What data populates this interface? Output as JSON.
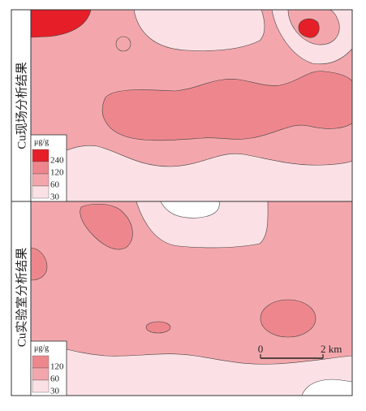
{
  "panels": [
    {
      "label": "Cu现场分析结果",
      "legend": {
        "unit": "μg/g",
        "items": [
          {
            "label": "240",
            "color": "#e61e28"
          },
          {
            "label": "120",
            "color": "#ee878d"
          },
          {
            "label": "60",
            "color": "#f3a7ac"
          },
          {
            "label": "30",
            "color": "#fbe1e5"
          }
        ]
      }
    },
    {
      "label": "Cu实验室分析结果",
      "legend": {
        "unit": "μg/g",
        "items": [
          {
            "label": "120",
            "color": "#ee878d"
          },
          {
            "label": "60",
            "color": "#f3a7ac"
          },
          {
            "label": "30",
            "color": "#fbe1e5"
          }
        ]
      }
    }
  ],
  "scale_bar": {
    "start": "0",
    "end": "2 km"
  }
}
